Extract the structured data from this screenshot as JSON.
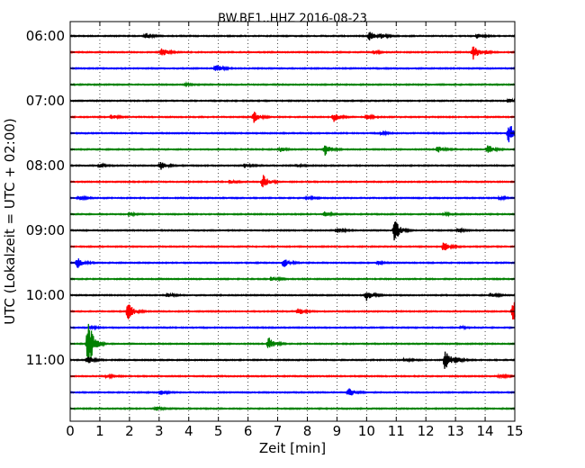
{
  "chart_data": {
    "type": "line",
    "title": "BW.BE1..HHZ 2016-08-23",
    "xlabel": "Zeit  [min]",
    "ylabel": "UTC (Lokalzeit = UTC + 02:00)",
    "xlim": [
      0,
      15
    ],
    "x_ticks": [
      "0",
      "1",
      "2",
      "3",
      "4",
      "5",
      "6",
      "7",
      "8",
      "9",
      "10",
      "11",
      "12",
      "13",
      "14",
      "15"
    ],
    "y_tick_labels": [
      "06:00",
      "07:00",
      "08:00",
      "09:00",
      "10:00",
      "11:00"
    ],
    "grid": "vertical dotted lines at each minute",
    "trace_interval_minutes": 15,
    "trace_colors": [
      "#000000",
      "#ff0000",
      "#0000ff",
      "#008000"
    ],
    "traces": [
      {
        "start": "06:00",
        "events": [
          {
            "t": 2.55,
            "amp": 0.4
          },
          {
            "t": 10.1,
            "amp": 0.6
          },
          {
            "t": 10.5,
            "amp": 0.3
          },
          {
            "t": 13.75,
            "amp": 0.3
          }
        ]
      },
      {
        "start": "06:15",
        "events": [
          {
            "t": 3.1,
            "amp": 0.6
          },
          {
            "t": 10.25,
            "amp": 0.2
          },
          {
            "t": 13.6,
            "amp": 1.0
          },
          {
            "t": 14.0,
            "amp": 0.2
          }
        ]
      },
      {
        "start": "06:30",
        "events": [
          {
            "t": 4.9,
            "amp": 0.25
          },
          {
            "t": 4.95,
            "amp": 0.25
          }
        ]
      },
      {
        "start": "06:45",
        "events": [
          {
            "t": 3.9,
            "amp": 0.15
          }
        ]
      },
      {
        "start": "07:00",
        "events": [
          {
            "t": 14.8,
            "amp": 0.25
          }
        ]
      },
      {
        "start": "07:15",
        "events": [
          {
            "t": 1.4,
            "amp": 0.3
          },
          {
            "t": 6.2,
            "amp": 0.7
          },
          {
            "t": 8.9,
            "amp": 0.55
          },
          {
            "t": 10.0,
            "amp": 0.3
          }
        ]
      },
      {
        "start": "07:30",
        "events": [
          {
            "t": 10.5,
            "amp": 0.2
          },
          {
            "t": 14.8,
            "amp": 1.5
          }
        ]
      },
      {
        "start": "07:45",
        "events": [
          {
            "t": 7.1,
            "amp": 0.3
          },
          {
            "t": 8.6,
            "amp": 0.8
          },
          {
            "t": 12.4,
            "amp": 0.4
          },
          {
            "t": 14.1,
            "amp": 0.6
          }
        ]
      },
      {
        "start": "08:00",
        "events": [
          {
            "t": 1.0,
            "amp": 0.2
          },
          {
            "t": 3.05,
            "amp": 0.6
          },
          {
            "t": 5.9,
            "amp": 0.25
          },
          {
            "t": 7.65,
            "amp": 0.2
          }
        ]
      },
      {
        "start": "08:15",
        "events": [
          {
            "t": 5.4,
            "amp": 0.2
          },
          {
            "t": 6.5,
            "amp": 1.0
          }
        ]
      },
      {
        "start": "08:30",
        "events": [
          {
            "t": 0.3,
            "amp": 0.25
          },
          {
            "t": 8.0,
            "amp": 0.2
          },
          {
            "t": 14.5,
            "amp": 0.2
          }
        ]
      },
      {
        "start": "08:45",
        "events": [
          {
            "t": 2.0,
            "amp": 0.2
          },
          {
            "t": 8.6,
            "amp": 0.35
          },
          {
            "t": 12.6,
            "amp": 0.2
          }
        ]
      },
      {
        "start": "09:00",
        "events": [
          {
            "t": 9.0,
            "amp": 0.4
          },
          {
            "t": 10.95,
            "amp": 1.5
          },
          {
            "t": 13.1,
            "amp": 0.2
          }
        ]
      },
      {
        "start": "09:15",
        "events": [
          {
            "t": 12.6,
            "amp": 0.7
          }
        ]
      },
      {
        "start": "09:30",
        "events": [
          {
            "t": 0.25,
            "amp": 0.7
          },
          {
            "t": 7.2,
            "amp": 0.6
          },
          {
            "t": 10.4,
            "amp": 0.25
          }
        ]
      },
      {
        "start": "09:45",
        "events": [
          {
            "t": 6.8,
            "amp": 0.3
          }
        ]
      },
      {
        "start": "10:00",
        "events": [
          {
            "t": 3.3,
            "amp": 0.25
          },
          {
            "t": 10.0,
            "amp": 0.7
          },
          {
            "t": 14.2,
            "amp": 0.3
          }
        ]
      },
      {
        "start": "10:15",
        "events": [
          {
            "t": 1.95,
            "amp": 1.2
          },
          {
            "t": 7.7,
            "amp": 0.5
          },
          {
            "t": 14.95,
            "amp": 1.6
          }
        ]
      },
      {
        "start": "10:30",
        "events": [
          {
            "t": 0.7,
            "amp": 0.2
          },
          {
            "t": 13.2,
            "amp": 0.2
          }
        ]
      },
      {
        "start": "10:45",
        "events": [
          {
            "t": 0.6,
            "amp": 3.5
          },
          {
            "t": 6.7,
            "amp": 0.8
          }
        ]
      },
      {
        "start": "11:00",
        "events": [
          {
            "t": 0.6,
            "amp": 0.5
          },
          {
            "t": 11.3,
            "amp": 0.2
          },
          {
            "t": 12.65,
            "amp": 1.5
          },
          {
            "t": 13.0,
            "amp": 0.4
          }
        ]
      },
      {
        "start": "11:15",
        "events": [
          {
            "t": 1.25,
            "amp": 0.25
          },
          {
            "t": 14.5,
            "amp": 0.25
          }
        ]
      },
      {
        "start": "11:30",
        "events": [
          {
            "t": 3.05,
            "amp": 0.3
          },
          {
            "t": 9.4,
            "amp": 0.6
          }
        ]
      },
      {
        "start": "11:45",
        "events": [
          {
            "t": 2.9,
            "amp": 0.3
          }
        ]
      }
    ]
  }
}
